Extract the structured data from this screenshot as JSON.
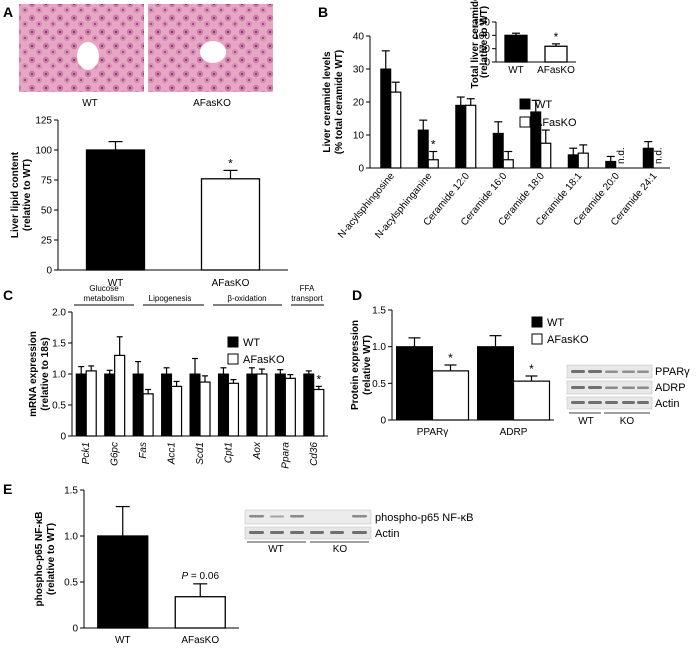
{
  "panels": {
    "A": {
      "letter": "A",
      "histology_labels": [
        "WT",
        "AFasKO"
      ],
      "star": "*"
    },
    "B": {
      "letter": "B",
      "inset_star": "*",
      "nd_label": "n.d."
    },
    "C": {
      "letter": "C",
      "groups": [
        "Glucose metabolism",
        "Lipogenesis",
        "β-oxidation",
        "FFA transport"
      ],
      "group_lines": [
        [
          "Glucose",
          "metabolism"
        ],
        [
          "Lipogenesis"
        ],
        [
          "β-oxidation"
        ],
        [
          "FFA",
          "transport"
        ]
      ]
    },
    "D": {
      "letter": "D",
      "blot_labels": [
        "PPARγ",
        "ADRP",
        "Actin"
      ],
      "blot_groups": [
        "WT",
        "KO"
      ]
    },
    "E": {
      "letter": "E",
      "pvalue_text": "P = 0.06",
      "blot_labels": [
        "phospho-p65 NF-κB",
        "Actin"
      ],
      "blot_groups": [
        "WT",
        "KO"
      ]
    }
  },
  "colors": {
    "wt": "#000000",
    "ko": "#ffffff",
    "tissue": "#d98ab0",
    "blot_bg": "#e9e9e9",
    "band": "#6b6b6b"
  },
  "chart_data": [
    {
      "id": "A",
      "type": "bar",
      "categories": [
        "WT",
        "AFasKO"
      ],
      "values": [
        100,
        76
      ],
      "errors": [
        7,
        7
      ],
      "fills": [
        "#000000",
        "#ffffff"
      ],
      "ylabel": [
        "Liver lipid content",
        "(relative to WT)"
      ],
      "ylim": [
        0,
        125
      ],
      "yticks": [
        0,
        25,
        50,
        75,
        100,
        125
      ],
      "significance": [
        false,
        true
      ]
    },
    {
      "id": "B",
      "type": "bar",
      "categories": [
        "N-acylsphingosine",
        "N-acylsphinganine",
        "Ceramide 12:0",
        "Ceramide 16:0",
        "Ceramide 18:0",
        "Ceramide 18:1",
        "Ceramide 20:0",
        "Ceramide 24:1"
      ],
      "series": [
        {
          "name": "WT",
          "values": [
            30,
            11.5,
            19,
            10.5,
            17,
            4,
            2,
            6
          ],
          "errors": [
            5.5,
            3,
            2.5,
            3.5,
            3.5,
            2,
            1.5,
            2
          ]
        },
        {
          "name": "AFasKO",
          "values": [
            23,
            2.5,
            19,
            2.5,
            7.5,
            4.5,
            null,
            null
          ],
          "errors": [
            3,
            2.5,
            2,
            2.5,
            4,
            2.5,
            null,
            null
          ]
        }
      ],
      "not_detected": [
        false,
        false,
        false,
        false,
        false,
        false,
        true,
        true
      ],
      "significance": [
        false,
        true,
        false,
        false,
        false,
        false,
        false,
        false
      ],
      "ylabel": [
        "Liver ceramide levels",
        "(% total ceramide WT)"
      ],
      "ylim": [
        0,
        40
      ],
      "yticks": [
        0,
        10,
        20,
        30,
        40
      ],
      "legend": [
        "WT",
        "AFasKO"
      ]
    },
    {
      "id": "B-inset",
      "type": "bar",
      "categories": [
        "WT",
        "AFasKO"
      ],
      "values": [
        100,
        59
      ],
      "errors": [
        8,
        9
      ],
      "fills": [
        "#000000",
        "#ffffff"
      ],
      "ylabel": [
        "Total liver ceramide",
        "(relative to WT)"
      ],
      "ylim": [
        0,
        150
      ],
      "yticks": [
        0,
        50,
        100,
        150
      ],
      "significance": [
        false,
        true
      ]
    },
    {
      "id": "C",
      "type": "bar",
      "categories": [
        "Pck1",
        "G6pc",
        "Fas",
        "Acc1",
        "Scd1",
        "Cpt1",
        "Aox",
        "Ppara",
        "Cd36"
      ],
      "series": [
        {
          "name": "WT",
          "values": [
            1.0,
            1.0,
            1.0,
            1.0,
            1.0,
            1.0,
            1.0,
            1.0,
            1.0
          ],
          "errors": [
            0.12,
            0.06,
            0.2,
            0.1,
            0.25,
            0.1,
            0.1,
            0.07,
            0.05
          ]
        },
        {
          "name": "AFasKO",
          "values": [
            1.05,
            1.3,
            0.68,
            0.8,
            0.87,
            0.85,
            1.0,
            0.93,
            0.75
          ]
        }
      ],
      "ko_errors": [
        0.08,
        0.3,
        0.07,
        0.08,
        0.1,
        0.06,
        0.08,
        0.06,
        0.05
      ],
      "significance": [
        false,
        false,
        false,
        false,
        false,
        false,
        false,
        false,
        true
      ],
      "ylabel": [
        "mRNA expression",
        "(relative to 18s)"
      ],
      "ylim": [
        0,
        2.0
      ],
      "yticks": [
        0,
        0.5,
        1.0,
        1.5,
        2.0
      ],
      "ytick_labels": [
        "0",
        "0.5",
        "1.0",
        "1.5",
        "2.0"
      ],
      "legend": [
        "WT",
        "AFasKO"
      ]
    },
    {
      "id": "D",
      "type": "bar",
      "categories": [
        "PPARγ",
        "ADRP"
      ],
      "series": [
        {
          "name": "WT",
          "values": [
            1.0,
            1.0
          ],
          "errors": [
            0.12,
            0.15
          ]
        },
        {
          "name": "AFasKO",
          "values": [
            0.67,
            0.53
          ],
          "errors": [
            0.08,
            0.07
          ]
        }
      ],
      "significance": [
        true,
        true
      ],
      "ylabel": [
        "Protein expression",
        "(relative WT)"
      ],
      "ylim": [
        0,
        1.5
      ],
      "yticks": [
        0,
        0.5,
        1.0,
        1.5
      ],
      "ytick_labels": [
        "0",
        "0.5",
        "1.0",
        "1.5"
      ],
      "legend": [
        "WT",
        "AFasKO"
      ]
    },
    {
      "id": "E",
      "type": "bar",
      "categories": [
        "WT",
        "AFasKO"
      ],
      "values": [
        1.0,
        0.34
      ],
      "errors": [
        0.32,
        0.14
      ],
      "fills": [
        "#000000",
        "#ffffff"
      ],
      "ylabel": [
        "phospho-p65 NF-κB",
        "(relative to WT)"
      ],
      "ylim": [
        0,
        1.5
      ],
      "yticks": [
        0,
        0.5,
        1.0,
        1.5
      ],
      "ytick_labels": [
        "0",
        "0.5",
        "1.0",
        "1.5"
      ]
    }
  ]
}
